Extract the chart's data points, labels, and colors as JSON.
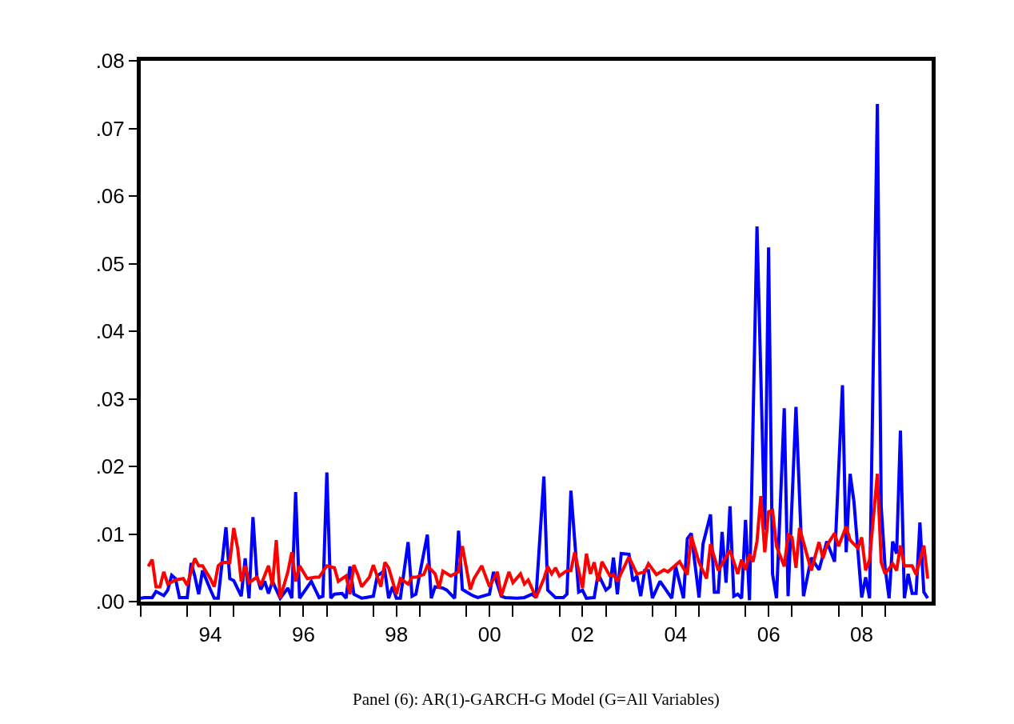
{
  "chart_data": {
    "type": "line",
    "annotations": [
      "Panel (6): AR(1)-GARCH-G Model (G=All Variables)"
    ],
    "xlim": [
      "1993-01",
      "2010-01"
    ],
    "xticks": [
      {
        "value": "1993-01",
        "label": null
      },
      {
        "value": "1994-01",
        "label": null
      },
      {
        "value": "1994-07",
        "label": "94"
      },
      {
        "value": "1995-01",
        "label": null
      },
      {
        "value": "1996-01",
        "label": null
      },
      {
        "value": "1996-07",
        "label": "96"
      },
      {
        "value": "1997-01",
        "label": null
      },
      {
        "value": "1998-01",
        "label": null
      },
      {
        "value": "1998-07",
        "label": "98"
      },
      {
        "value": "1999-01",
        "label": null
      },
      {
        "value": "2000-01",
        "label": null
      },
      {
        "value": "2000-07",
        "label": "00"
      },
      {
        "value": "2001-01",
        "label": null
      },
      {
        "value": "2002-01",
        "label": null
      },
      {
        "value": "2002-07",
        "label": "02"
      },
      {
        "value": "2003-01",
        "label": null
      },
      {
        "value": "2004-01",
        "label": null
      },
      {
        "value": "2004-07",
        "label": "04"
      },
      {
        "value": "2005-01",
        "label": null
      },
      {
        "value": "2006-01",
        "label": null
      },
      {
        "value": "2006-07",
        "label": "06"
      },
      {
        "value": "2007-01",
        "label": null
      },
      {
        "value": "2008-01",
        "label": null
      },
      {
        "value": "2008-07",
        "label": "08"
      },
      {
        "value": "2009-01",
        "label": null
      }
    ],
    "ylim": [
      0,
      0.08
    ],
    "yticks": [
      {
        "value": 0,
        "label": ".00"
      },
      {
        "value": 0.01,
        "label": ".01"
      },
      {
        "value": 0.02,
        "label": ".02"
      },
      {
        "value": 0.03,
        "label": ".03"
      },
      {
        "value": 0.04,
        "label": ".04"
      },
      {
        "value": 0.05,
        "label": ".05"
      },
      {
        "value": 0.06,
        "label": ".06"
      },
      {
        "value": 0.07,
        "label": ".07"
      },
      {
        "value": 0.08,
        "label": ".08"
      }
    ],
    "marker": "none",
    "line_style": "solid",
    "series": [
      {
        "color": "#0000ff",
        "x": [
          "1993-01",
          "1993-02",
          "1993-04",
          "1993-05",
          "1993-07",
          "1993-08",
          "1993-09",
          "1993-10",
          "1993-11",
          "1994-01",
          "1994-02",
          "1994-03",
          "1994-04",
          "1994-05",
          "1994-07",
          "1994-08",
          "1994-09",
          "1994-11",
          "1994-12",
          "1995-01",
          "1995-03",
          "1995-04",
          "1995-05",
          "1995-06",
          "1995-07",
          "1995-08",
          "1995-09",
          "1995-10",
          "1995-11",
          "1996-01",
          "1996-03",
          "1996-04",
          "1996-05",
          "1996-06",
          "1996-09",
          "1996-11",
          "1996-12",
          "1997-01",
          "1997-02",
          "1997-03",
          "1997-05",
          "1997-06",
          "1997-07",
          "1997-08",
          "1997-10",
          "1997-11",
          "1998-01",
          "1998-02",
          "1998-04",
          "1998-05",
          "1998-06",
          "1998-07",
          "1998-08",
          "1998-10",
          "1998-11",
          "1998-12",
          "1999-03",
          "1999-04",
          "1999-05",
          "1999-07",
          "1999-08",
          "1999-10",
          "1999-11",
          "1999-12",
          "2000-02",
          "2000-03",
          "2000-04",
          "2000-07",
          "2000-08",
          "2000-10",
          "2000-11",
          "2001-02",
          "2001-04",
          "2001-06",
          "2001-07",
          "2001-09",
          "2001-10",
          "2001-12",
          "2002-02",
          "2002-03",
          "2002-04",
          "2002-06",
          "2002-07",
          "2002-08",
          "2002-10",
          "2002-11",
          "2003-01",
          "2003-02",
          "2003-03",
          "2003-04",
          "2003-05",
          "2003-07",
          "2003-08",
          "2003-09",
          "2003-10",
          "2003-11",
          "2003-12",
          "2004-01",
          "2004-03",
          "2004-06",
          "2004-07",
          "2004-09",
          "2004-10",
          "2004-11",
          "2005-01",
          "2005-02",
          "2005-04",
          "2005-05",
          "2005-06",
          "2005-07",
          "2005-08",
          "2005-09",
          "2005-10",
          "2005-11",
          "2005-12",
          "2006-01",
          "2006-02",
          "2006-04",
          "2006-06",
          "2006-07",
          "2006-08",
          "2006-09",
          "2006-11",
          "2006-12",
          "2007-02",
          "2007-04",
          "2007-06",
          "2007-08",
          "2007-10",
          "2007-12",
          "2008-02",
          "2008-03",
          "2008-04",
          "2008-05",
          "2008-07",
          "2008-08",
          "2008-09",
          "2008-11",
          "2008-12",
          "2009-01",
          "2009-02",
          "2009-03",
          "2009-04",
          "2009-05",
          "2009-06",
          "2009-07",
          "2009-08",
          "2009-09",
          "2009-10",
          "2009-11",
          "2009-12"
        ],
        "values": [
          0.0005,
          0.0006,
          0.0006,
          0.0015,
          0.0009,
          0.0017,
          0.0039,
          0.0034,
          0.0006,
          0.0006,
          0.0057,
          0.0038,
          0.0011,
          0.0046,
          0.0018,
          0.0005,
          0.0005,
          0.011,
          0.0034,
          0.0031,
          0.0008,
          0.0064,
          0.0005,
          0.0125,
          0.0038,
          0.0018,
          0.003,
          0.0012,
          0.003,
          0.0005,
          0.002,
          0.0005,
          0.0162,
          0.0005,
          0.003,
          0.0006,
          0.0008,
          0.0191,
          0.0005,
          0.0011,
          0.0012,
          0.0005,
          0.0052,
          0.0011,
          0.0005,
          0.0006,
          0.0008,
          0.0038,
          0.0046,
          0.0005,
          0.0022,
          0.0005,
          0.0005,
          0.0088,
          0.0008,
          0.0011,
          0.0099,
          0.0005,
          0.0022,
          0.002,
          0.0017,
          0.0005,
          0.0105,
          0.0018,
          0.0011,
          0.0008,
          0.0006,
          0.0011,
          0.0044,
          0.0008,
          0.0006,
          0.0005,
          0.0006,
          0.0011,
          0.0006,
          0.0185,
          0.0017,
          0.0006,
          0.0006,
          0.0011,
          0.0164,
          0.0014,
          0.0017,
          0.0005,
          0.0006,
          0.0041,
          0.0017,
          0.0022,
          0.0065,
          0.0011,
          0.0071,
          0.007,
          0.003,
          0.0038,
          0.0008,
          0.0046,
          0.0046,
          0.0005,
          0.003,
          0.0005,
          0.0052,
          0.0005,
          0.0093,
          0.0101,
          0.0006,
          0.0085,
          0.0129,
          0.0014,
          0.0014,
          0.0103,
          0.0028,
          0.0141,
          0.0008,
          0.0011,
          0.0005,
          0.0121,
          0.0002,
          0.0555,
          0.0106,
          0.0524,
          0.0041,
          0.0005,
          0.0286,
          0.0008,
          0.0288,
          0.0008,
          0.0065,
          0.0047,
          0.0089,
          0.0059,
          0.032,
          0.0073,
          0.0189,
          0.0148,
          0.0006,
          0.0036,
          0.0005,
          0.0736,
          0.0141,
          0.005,
          0.0005,
          0.0089,
          0.0071,
          0.0253,
          0.0005,
          0.0041,
          0.0012,
          0.0012,
          0.0117,
          0.0014,
          0.0005
        ]
      },
      {
        "color": "#ff0000",
        "x": [
          "1993-03",
          "1993-04",
          "1993-05",
          "1993-06",
          "1993-07",
          "1993-08",
          "1993-10",
          "1993-12",
          "1994-01",
          "1994-03",
          "1994-04",
          "1994-05",
          "1994-07",
          "1994-08",
          "1994-09",
          "1994-10",
          "1994-12",
          "1995-01",
          "1995-02",
          "1995-03",
          "1995-04",
          "1995-05",
          "1995-07",
          "1995-08",
          "1995-10",
          "1995-11",
          "1995-12",
          "1996-01",
          "1996-03",
          "1996-04",
          "1996-05",
          "1996-06",
          "1996-08",
          "1996-10",
          "1996-11",
          "1997-01",
          "1997-03",
          "1997-04",
          "1997-06",
          "1997-07",
          "1997-08",
          "1997-09",
          "1997-10",
          "1997-12",
          "1998-01",
          "1998-03",
          "1998-04",
          "1998-05",
          "1998-07",
          "1998-08",
          "1998-10",
          "1998-11",
          "1998-12",
          "1999-02",
          "1999-03",
          "1999-05",
          "1999-06",
          "1999-07",
          "1999-09",
          "1999-11",
          "1999-12",
          "2000-02",
          "2000-03",
          "2000-05",
          "2000-07",
          "2000-09",
          "2000-10",
          "2000-12",
          "2001-01",
          "2001-03",
          "2001-04",
          "2001-05",
          "2001-07",
          "2001-09",
          "2001-10",
          "2001-11",
          "2001-12",
          "2002-01",
          "2002-03",
          "2002-04",
          "2002-05",
          "2002-07",
          "2002-08",
          "2002-09",
          "2002-10",
          "2002-11",
          "2002-12",
          "2003-02",
          "2003-03",
          "2003-04",
          "2003-07",
          "2003-09",
          "2003-11",
          "2003-12",
          "2004-02",
          "2004-04",
          "2004-05",
          "2004-08",
          "2004-10",
          "2004-11",
          "2005-01",
          "2005-03",
          "2005-04",
          "2005-06",
          "2005-09",
          "2005-11",
          "2005-12",
          "2006-01",
          "2006-02",
          "2006-03",
          "2006-04",
          "2006-05",
          "2006-06",
          "2006-07",
          "2006-08",
          "2006-09",
          "2006-11",
          "2006-12",
          "2007-01",
          "2007-02",
          "2007-03",
          "2007-06",
          "2007-08",
          "2007-09",
          "2007-10",
          "2007-12",
          "2008-01",
          "2008-03",
          "2008-04",
          "2008-06",
          "2008-07",
          "2008-08",
          "2008-09",
          "2008-11",
          "2008-12",
          "2009-01",
          "2009-03",
          "2009-04",
          "2009-05",
          "2009-06",
          "2009-08",
          "2009-09",
          "2009-11",
          "2009-12"
        ],
        "values": [
          0.0052,
          0.0062,
          0.0022,
          0.0022,
          0.0044,
          0.0026,
          0.0032,
          0.0034,
          0.0024,
          0.0064,
          0.0053,
          0.0053,
          0.0034,
          0.0022,
          0.0053,
          0.0058,
          0.0058,
          0.0109,
          0.0079,
          0.003,
          0.0053,
          0.0028,
          0.0036,
          0.0024,
          0.0053,
          0.0024,
          0.0091,
          0.0005,
          0.0044,
          0.0073,
          0.003,
          0.0053,
          0.0034,
          0.0036,
          0.0036,
          0.0053,
          0.005,
          0.003,
          0.0038,
          0.0011,
          0.0054,
          0.004,
          0.0022,
          0.0036,
          0.0054,
          0.0022,
          0.0058,
          0.005,
          0.0011,
          0.0034,
          0.0026,
          0.0036,
          0.0036,
          0.004,
          0.0053,
          0.0041,
          0.002,
          0.0045,
          0.0038,
          0.0044,
          0.0082,
          0.0018,
          0.0034,
          0.0053,
          0.0022,
          0.0044,
          0.0008,
          0.0044,
          0.0028,
          0.0041,
          0.0026,
          0.0032,
          0.0006,
          0.0034,
          0.0052,
          0.0041,
          0.005,
          0.0038,
          0.0046,
          0.0046,
          0.0073,
          0.002,
          0.0071,
          0.0041,
          0.0058,
          0.003,
          0.0059,
          0.0038,
          0.004,
          0.003,
          0.0066,
          0.0041,
          0.0044,
          0.0056,
          0.004,
          0.0047,
          0.0044,
          0.0059,
          0.004,
          0.0097,
          0.0058,
          0.0034,
          0.0085,
          0.0046,
          0.0076,
          0.0041,
          0.0062,
          0.0047,
          0.007,
          0.0059,
          0.0089,
          0.0156,
          0.0073,
          0.0133,
          0.0135,
          0.0082,
          0.0052,
          0.0099,
          0.0095,
          0.005,
          0.0109,
          0.0046,
          0.0088,
          0.0064,
          0.0083,
          0.0101,
          0.0082,
          0.0111,
          0.0091,
          0.0079,
          0.0095,
          0.0046,
          0.0062,
          0.0189,
          0.0058,
          0.0041,
          0.0056,
          0.0046,
          0.0083,
          0.0053,
          0.0053,
          0.004,
          0.0083,
          0.0034
        ]
      }
    ]
  }
}
